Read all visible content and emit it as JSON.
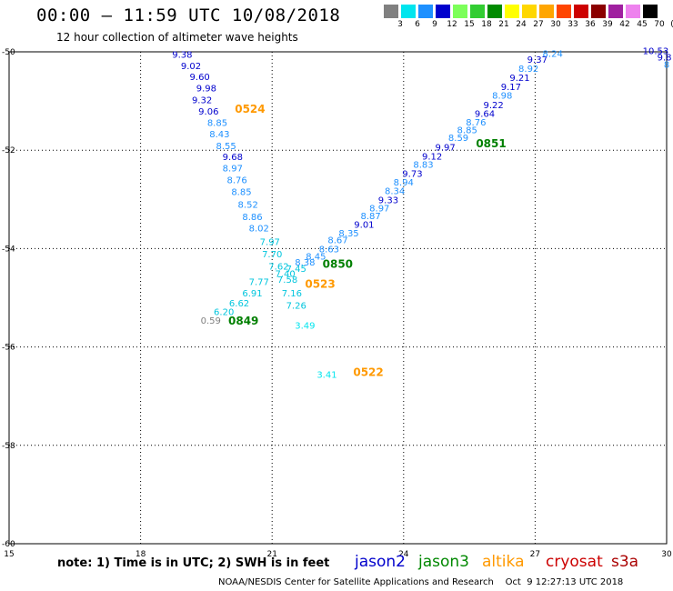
{
  "header": {
    "title": "00:00 – 11:59 UTC 10/08/2018",
    "subtitle": "12 hour collection of altimeter wave heights"
  },
  "scale": {
    "labels": [
      "3",
      "6",
      "9",
      "12",
      "15",
      "18",
      "21",
      "24",
      "27",
      "30",
      "33",
      "36",
      "39",
      "42",
      "45",
      "70",
      "(ft)"
    ],
    "colors": [
      "#808080",
      "#00e5ee",
      "#1e90ff",
      "#0000cd",
      "#7cff5a",
      "#32cd32",
      "#008b00",
      "#ffff00",
      "#ffd700",
      "#ffa500",
      "#ff4500",
      "#cd0000",
      "#8b0000",
      "#a020a0",
      "#ee82ee",
      "#000000"
    ]
  },
  "chart_data": {
    "type": "scatter",
    "title": "00:00 – 11:59 UTC 10/08/2018",
    "subtitle": "12 hour collection of altimeter wave heights",
    "xlim": [
      15,
      30
    ],
    "ylim": [
      -60,
      -50
    ],
    "xticks": [
      "15",
      "18",
      "21",
      "24",
      "27",
      "30"
    ],
    "yticks": [
      "-50",
      "-52",
      "-54",
      "-56",
      "-58",
      "-60"
    ],
    "grid": true,
    "points": [
      {
        "lon": 18.95,
        "lat": -50.05,
        "swh": "9.38",
        "color": "#0000cd"
      },
      {
        "lon": 19.15,
        "lat": -50.28,
        "swh": "9.02",
        "color": "#0000cd"
      },
      {
        "lon": 19.35,
        "lat": -50.5,
        "swh": "9.60",
        "color": "#0000cd"
      },
      {
        "lon": 19.5,
        "lat": -50.73,
        "swh": "9.98",
        "color": "#0000cd"
      },
      {
        "lon": 19.4,
        "lat": -50.97,
        "swh": "9.32",
        "color": "#0000cd"
      },
      {
        "lon": 19.55,
        "lat": -51.2,
        "swh": "9.06",
        "color": "#0000cd"
      },
      {
        "lon": 19.75,
        "lat": -51.43,
        "swh": "8.85",
        "color": "#1e90ff"
      },
      {
        "lon": 19.8,
        "lat": -51.66,
        "swh": "8.43",
        "color": "#1e90ff"
      },
      {
        "lon": 19.95,
        "lat": -51.9,
        "swh": "8.55",
        "color": "#1e90ff"
      },
      {
        "lon": 20.1,
        "lat": -52.13,
        "swh": "9.68",
        "color": "#0000cd"
      },
      {
        "lon": 20.1,
        "lat": -52.36,
        "swh": "8.97",
        "color": "#1e90ff"
      },
      {
        "lon": 20.2,
        "lat": -52.6,
        "swh": "8.76",
        "color": "#1e90ff"
      },
      {
        "lon": 20.3,
        "lat": -52.84,
        "swh": "8.85",
        "color": "#1e90ff"
      },
      {
        "lon": 20.45,
        "lat": -53.1,
        "swh": "8.52",
        "color": "#1e90ff"
      },
      {
        "lon": 20.55,
        "lat": -53.35,
        "swh": "8.86",
        "color": "#1e90ff"
      },
      {
        "lon": 20.7,
        "lat": -53.58,
        "swh": "8.02",
        "color": "#1e90ff"
      },
      {
        "lon": 20.95,
        "lat": -53.85,
        "swh": "7.97",
        "color": "#00c5dd"
      },
      {
        "lon": 21.0,
        "lat": -54.1,
        "swh": "7.70",
        "color": "#00c5dd"
      },
      {
        "lon": 21.15,
        "lat": -54.35,
        "swh": "7.62",
        "color": "#00c5dd"
      },
      {
        "lon": 21.55,
        "lat": -54.4,
        "swh": "7.45",
        "color": "#00c5dd"
      },
      {
        "lon": 21.3,
        "lat": -54.5,
        "swh": "7.40",
        "color": "#00c5dd"
      },
      {
        "lon": 21.35,
        "lat": -54.62,
        "swh": "7.58",
        "color": "#00c5dd"
      },
      {
        "lon": 20.7,
        "lat": -54.67,
        "swh": "7.77",
        "color": "#00c5dd"
      },
      {
        "lon": 21.45,
        "lat": -54.9,
        "swh": "7.16",
        "color": "#00c5dd"
      },
      {
        "lon": 20.55,
        "lat": -54.9,
        "swh": "6.91",
        "color": "#00c5dd"
      },
      {
        "lon": 20.25,
        "lat": -55.1,
        "swh": "6.62",
        "color": "#00c5dd"
      },
      {
        "lon": 21.55,
        "lat": -55.15,
        "swh": "7.26",
        "color": "#00c5dd"
      },
      {
        "lon": 19.9,
        "lat": -55.28,
        "swh": "6.20",
        "color": "#00c5dd"
      },
      {
        "lon": 19.6,
        "lat": -55.45,
        "swh": "0.59",
        "color": "#808080"
      },
      {
        "lon": 21.75,
        "lat": -55.55,
        "swh": "3.49",
        "color": "#00e5ee"
      },
      {
        "lon": 22.25,
        "lat": -56.55,
        "swh": "3.41",
        "color": "#00e5ee"
      },
      {
        "lon": 21.75,
        "lat": -54.27,
        "swh": "8.38",
        "color": "#1e90ff"
      },
      {
        "lon": 22.0,
        "lat": -54.15,
        "swh": "8.45",
        "color": "#1e90ff"
      },
      {
        "lon": 22.3,
        "lat": -54.0,
        "swh": "8.63",
        "color": "#1e90ff"
      },
      {
        "lon": 22.5,
        "lat": -53.82,
        "swh": "8.67",
        "color": "#1e90ff"
      },
      {
        "lon": 22.75,
        "lat": -53.68,
        "swh": "8.35",
        "color": "#1e90ff"
      },
      {
        "lon": 23.1,
        "lat": -53.5,
        "swh": "9.01",
        "color": "#0000cd"
      },
      {
        "lon": 23.25,
        "lat": -53.33,
        "swh": "8.87",
        "color": "#1e90ff"
      },
      {
        "lon": 23.45,
        "lat": -53.17,
        "swh": "8.97",
        "color": "#1e90ff"
      },
      {
        "lon": 23.65,
        "lat": -53.0,
        "swh": "9.33",
        "color": "#0000cd"
      },
      {
        "lon": 23.8,
        "lat": -52.82,
        "swh": "8.34",
        "color": "#1e90ff"
      },
      {
        "lon": 24.0,
        "lat": -52.64,
        "swh": "8.94",
        "color": "#1e90ff"
      },
      {
        "lon": 24.2,
        "lat": -52.47,
        "swh": "9.73",
        "color": "#0000cd"
      },
      {
        "lon": 24.45,
        "lat": -52.28,
        "swh": "8.83",
        "color": "#1e90ff"
      },
      {
        "lon": 24.65,
        "lat": -52.12,
        "swh": "9.12",
        "color": "#0000cd"
      },
      {
        "lon": 24.95,
        "lat": -51.93,
        "swh": "9.97",
        "color": "#0000cd"
      },
      {
        "lon": 25.25,
        "lat": -51.74,
        "swh": "8.59",
        "color": "#1e90ff"
      },
      {
        "lon": 25.45,
        "lat": -51.58,
        "swh": "8.85",
        "color": "#1e90ff"
      },
      {
        "lon": 25.65,
        "lat": -51.42,
        "swh": "8.76",
        "color": "#1e90ff"
      },
      {
        "lon": 25.85,
        "lat": -51.25,
        "swh": "9.64",
        "color": "#0000cd"
      },
      {
        "lon": 26.05,
        "lat": -51.07,
        "swh": "9.22",
        "color": "#0000cd"
      },
      {
        "lon": 26.25,
        "lat": -50.88,
        "swh": "8.98",
        "color": "#1e90ff"
      },
      {
        "lon": 26.45,
        "lat": -50.7,
        "swh": "9.17",
        "color": "#0000cd"
      },
      {
        "lon": 26.65,
        "lat": -50.52,
        "swh": "9.21",
        "color": "#0000cd"
      },
      {
        "lon": 26.85,
        "lat": -50.33,
        "swh": "8.92",
        "color": "#1e90ff"
      },
      {
        "lon": 27.05,
        "lat": -50.15,
        "swh": "9.37",
        "color": "#0000cd"
      },
      {
        "lon": 27.4,
        "lat": -50.03,
        "swh": "8.24",
        "color": "#1e90ff"
      },
      {
        "lon": 29.75,
        "lat": -49.97,
        "swh": "10.53",
        "color": "#0000cd"
      },
      {
        "lon": 29.95,
        "lat": -50.1,
        "swh": "9.8",
        "color": "#0000cd"
      },
      {
        "lon": 30.0,
        "lat": -50.25,
        "swh": "8",
        "color": "#1e90ff"
      }
    ],
    "time_labels": [
      {
        "lon": 20.15,
        "lat": -51.15,
        "text": "0524",
        "color": "#ff9900"
      },
      {
        "lon": 25.65,
        "lat": -51.85,
        "text": "0851",
        "color": "#007f00"
      },
      {
        "lon": 22.15,
        "lat": -54.3,
        "text": "0850",
        "color": "#007f00"
      },
      {
        "lon": 21.75,
        "lat": -54.7,
        "text": "0523",
        "color": "#ff9900"
      },
      {
        "lon": 20.0,
        "lat": -55.45,
        "text": "0849",
        "color": "#007f00"
      },
      {
        "lon": 22.85,
        "lat": -56.5,
        "text": "0522",
        "color": "#ff9900"
      }
    ]
  },
  "footer": {
    "note": "note:  1) Time is in UTC;  2) SWH is in feet",
    "satellites": [
      {
        "name": "jason2",
        "color": "#0000cc"
      },
      {
        "name": "jason3",
        "color": "#008800"
      },
      {
        "name": "altika",
        "color": "#ff9900"
      },
      {
        "name": "cryosat",
        "color": "#cc0000"
      },
      {
        "name": "s3a",
        "color": "#aa0000"
      }
    ],
    "credit": "NOAA/NESDIS Center for Satellite Applications and Research    Oct  9 12:27:13 UTC 2018"
  }
}
